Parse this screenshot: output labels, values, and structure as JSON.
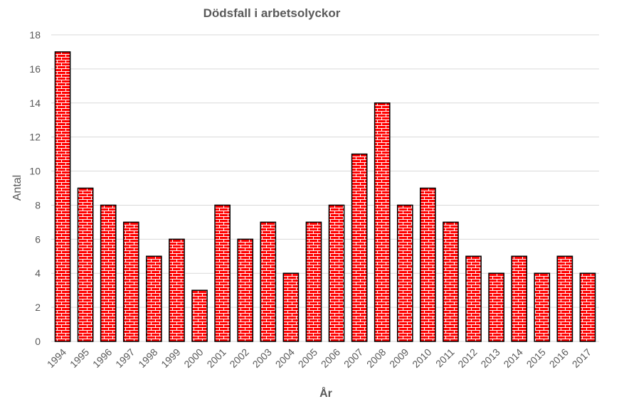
{
  "chart_data": {
    "type": "bar",
    "title": "Dödsfall i arbetsolyckor",
    "xlabel": "År",
    "ylabel": "Antal",
    "categories": [
      "1994",
      "1995",
      "1996",
      "1997",
      "1998",
      "1999",
      "2000",
      "2001",
      "2002",
      "2003",
      "2004",
      "2005",
      "2006",
      "2007",
      "2008",
      "2009",
      "2010",
      "2011",
      "2012",
      "2013",
      "2014",
      "2015",
      "2016",
      "2017"
    ],
    "values": [
      17,
      9,
      8,
      7,
      5,
      6,
      3,
      8,
      6,
      7,
      4,
      7,
      8,
      11,
      14,
      8,
      9,
      7,
      5,
      4,
      5,
      4,
      5,
      4
    ],
    "ylim": [
      0,
      18
    ],
    "yticks": [
      0,
      2,
      4,
      6,
      8,
      10,
      12,
      14,
      16,
      18
    ],
    "grid": true,
    "legend": "none",
    "colors": {
      "bar_fill": "#ff0000",
      "brick_lines": "#ffffff",
      "bar_outline": "#000000",
      "gridline": "#d9d9d9",
      "text": "#595959"
    },
    "fill_pattern": "brick"
  }
}
